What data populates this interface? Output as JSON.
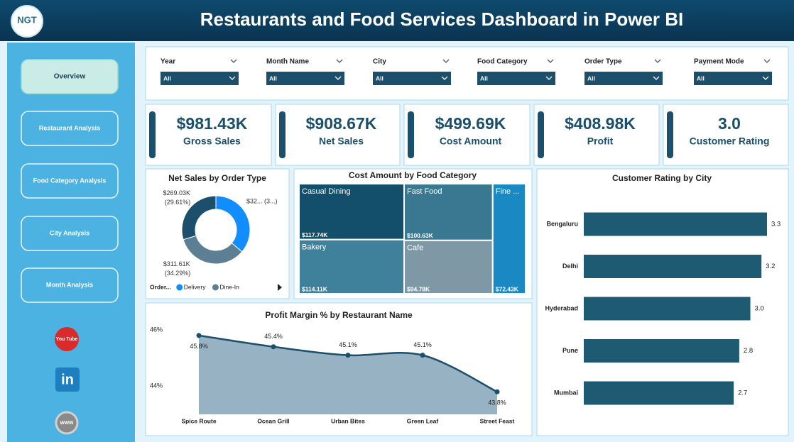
{
  "header": {
    "title": "Restaurants and Food Services Dashboard in Power BI",
    "logo": "NGT"
  },
  "nav": [
    "Overview",
    "Restaurant Analysis",
    "Food Category Analysis",
    "City Analysis",
    "Month Analysis"
  ],
  "social": [
    "You Tube",
    "in",
    "www"
  ],
  "filters": [
    {
      "label": "Year",
      "value": "All"
    },
    {
      "label": "Month Name",
      "value": "All"
    },
    {
      "label": "City",
      "value": "All"
    },
    {
      "label": "Food Category",
      "value": "All"
    },
    {
      "label": "Order Type",
      "value": "All"
    },
    {
      "label": "Payment Mode",
      "value": "All"
    }
  ],
  "kpis": [
    {
      "value": "$981.43K",
      "label": "Gross Sales"
    },
    {
      "value": "$908.67K",
      "label": "Net Sales"
    },
    {
      "value": "$499.69K",
      "label": "Cost Amount"
    },
    {
      "value": "$408.98K",
      "label": "Profit"
    },
    {
      "value": "3.0",
      "label": "Customer Rating"
    }
  ],
  "chart_data": [
    {
      "type": "donut",
      "title": "Net Sales by Order Type",
      "legend_title": "Order...",
      "categories": [
        "Delivery",
        "Dine-In",
        null
      ],
      "values": [
        328.03,
        311.61,
        269.03
      ],
      "value_labels": [
        "$32... (3...)",
        "$311.61K (34.29%)",
        "$269.03K (29.61%)"
      ],
      "colors": [
        "#118dff",
        "#5d7f93",
        "#1b4f6b"
      ]
    },
    {
      "type": "treemap",
      "title": "Cost Amount by Food Category",
      "categories": [
        "Casual Dining",
        "Fast Food",
        "Bakery",
        "Cafe",
        "Fine ..."
      ],
      "values": [
        117.74,
        100.63,
        114.11,
        94.78,
        72.43
      ],
      "value_labels": [
        "$117.74K",
        "$100.63K",
        "$114.11K",
        "$94.78K",
        "$72.43K"
      ],
      "colors": [
        "#134f6b",
        "#3a7891",
        "#3f809b",
        "#7e98a6",
        "#1a88c2"
      ]
    },
    {
      "type": "hbar",
      "title": "Customer Rating by City",
      "categories": [
        "Bengaluru",
        "Delhi",
        "Hyderabad",
        "Pune",
        "Mumbai"
      ],
      "values": [
        3.3,
        3.2,
        3.0,
        2.8,
        2.7
      ],
      "value_labels": [
        "3.3",
        "3.2",
        "3.0",
        "2.8",
        "2.7"
      ],
      "xlim": [
        0,
        3.3
      ],
      "color": "#1f5a73"
    },
    {
      "type": "area",
      "title": "Profit Margin % by Restaurant Name",
      "categories": [
        "Spice Route",
        "Ocean Grill",
        "Urban Bites",
        "Green Leaf",
        "Street Feast"
      ],
      "values": [
        45.8,
        45.4,
        45.1,
        45.1,
        43.8
      ],
      "value_labels": [
        "45.8%",
        "45.4%",
        "45.1%",
        "45.1%",
        "43.8%"
      ],
      "ylim": [
        43,
        46.3
      ],
      "yticks": [
        {
          "value": 46,
          "label": "46%"
        },
        {
          "value": 44,
          "label": "44%"
        }
      ],
      "color": "#1b4f6b",
      "fill": "#97b3c3"
    }
  ]
}
